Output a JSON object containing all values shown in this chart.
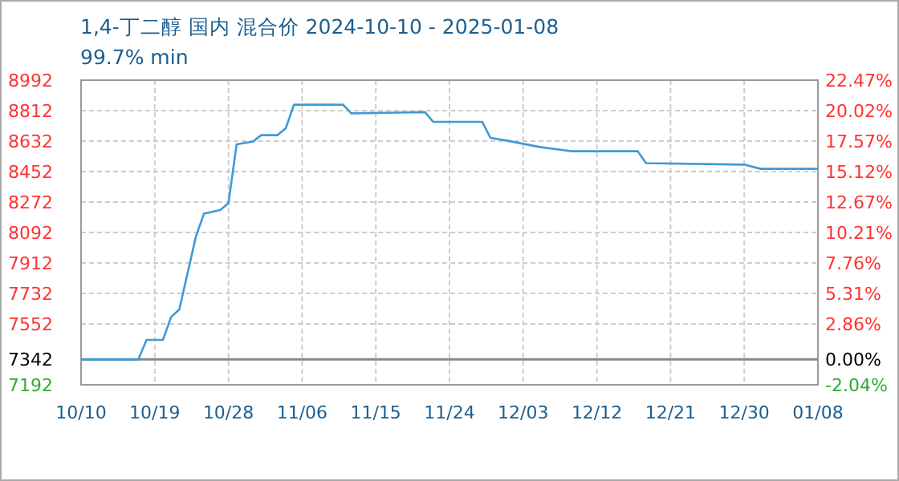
{
  "chart_data": {
    "type": "line",
    "title": "1,4-丁二醇 国内 混合价 2024-10-10 - 2025-01-08",
    "subtitle": "99.7% min",
    "x": [
      "2024-10-10",
      "2024-10-17",
      "2024-10-18",
      "2024-10-20",
      "2024-10-21",
      "2024-10-22",
      "2024-10-24",
      "2024-10-25",
      "2024-10-27",
      "2024-10-28",
      "2024-10-29",
      "2024-10-31",
      "2024-11-01",
      "2024-11-03",
      "2024-11-04",
      "2024-11-05",
      "2024-11-11",
      "2024-11-12",
      "2024-11-21",
      "2024-11-22",
      "2024-11-28",
      "2024-11-29",
      "2024-12-01",
      "2024-12-05",
      "2024-12-09",
      "2024-12-17",
      "2024-12-18",
      "2024-12-30",
      "2025-01-01",
      "2025-01-08"
    ],
    "series": [
      {
        "color": "#3d9ad8",
        "values": [
          7342,
          7342,
          7457,
          7457,
          7593,
          7637,
          8063,
          8203,
          8225,
          8265,
          8613,
          8629,
          8667,
          8667,
          8708,
          8847,
          8847,
          8796,
          8803,
          8746,
          8746,
          8651,
          8635,
          8597,
          8572,
          8572,
          8502,
          8493,
          8468,
          8468
        ]
      }
    ],
    "xlim": [
      "2024-10-10",
      "2025-01-08"
    ],
    "xticks": [
      {
        "value": "2024-10-10",
        "label": "10/10"
      },
      {
        "value": "2024-10-19",
        "label": "10/19"
      },
      {
        "value": "2024-10-28",
        "label": "10/28"
      },
      {
        "value": "2024-11-06",
        "label": "11/06"
      },
      {
        "value": "2024-11-15",
        "label": "11/15"
      },
      {
        "value": "2024-11-24",
        "label": "11/24"
      },
      {
        "value": "2024-12-03",
        "label": "12/03"
      },
      {
        "value": "2024-12-12",
        "label": "12/12"
      },
      {
        "value": "2024-12-21",
        "label": "12/21"
      },
      {
        "value": "2024-12-30",
        "label": "12/30"
      },
      {
        "value": "2025-01-08",
        "label": "01/08"
      }
    ],
    "ylim": [
      7192,
      8992
    ],
    "yticks": [
      7192,
      7342,
      7552,
      7732,
      7912,
      8092,
      8272,
      8452,
      8632,
      8812,
      8992
    ],
    "y2lim": [
      -2.04,
      22.47
    ],
    "y2ticks": [
      {
        "value": -2.04,
        "label": "-2.04%"
      },
      {
        "value": 0,
        "label": "0.00%"
      },
      {
        "value": 2.86,
        "label": "2.86%"
      },
      {
        "value": 5.31,
        "label": "5.31%"
      },
      {
        "value": 7.76,
        "label": "7.76%"
      },
      {
        "value": 10.21,
        "label": "10.21%"
      },
      {
        "value": 12.67,
        "label": "12.67%"
      },
      {
        "value": 15.12,
        "label": "15.12%"
      },
      {
        "value": 17.57,
        "label": "17.57%"
      },
      {
        "value": 20.02,
        "label": "20.02%"
      },
      {
        "value": 22.47,
        "label": "22.47%"
      }
    ],
    "ref_lines": [
      {
        "axis": "y",
        "value": 7342,
        "color": "#888888"
      }
    ],
    "grid": true,
    "marker": "none",
    "line_style": "solid"
  }
}
